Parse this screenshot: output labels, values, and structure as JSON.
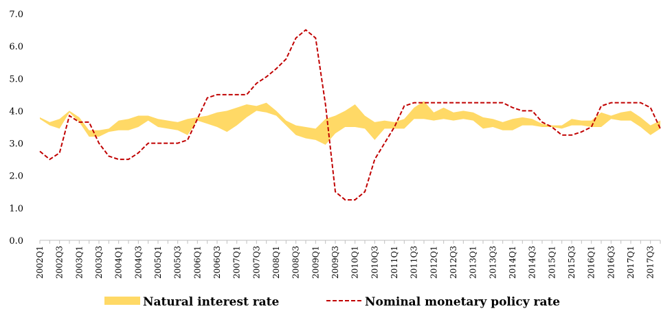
{
  "chart_data": {
    "type": "band-line",
    "categories": [
      "2002Q1",
      null,
      "2002Q3",
      null,
      "2003Q1",
      null,
      "2003Q3",
      null,
      "2004Q1",
      null,
      "2004Q3",
      null,
      "2005Q1",
      null,
      "2005Q3",
      null,
      "2006Q1",
      null,
      "2006Q3",
      null,
      "2007Q1",
      null,
      "2007Q3",
      null,
      "2008Q1",
      null,
      "2008Q3",
      null,
      "2009Q1",
      null,
      "2009Q3",
      null,
      "2010Q1",
      null,
      "2010Q3",
      null,
      "2011Q1",
      null,
      "2011Q3",
      null,
      "2012Q1",
      null,
      "2012Q3",
      null,
      "2013Q1",
      null,
      "2013Q3",
      null,
      "2014Q1",
      null,
      "2014Q3",
      null,
      "2015Q1",
      null,
      "2015Q3",
      null,
      "2016Q1",
      null,
      "2016Q3",
      null,
      "2017Q1",
      null,
      "2017Q3",
      null
    ],
    "series": [
      {
        "name": "Natural interest rate",
        "color": "#ffd966",
        "low": [
          3.75,
          3.55,
          3.45,
          3.95,
          3.65,
          3.2,
          3.2,
          3.35,
          3.4,
          3.4,
          3.5,
          3.7,
          3.5,
          3.45,
          3.4,
          3.25,
          3.7,
          3.6,
          3.5,
          3.35,
          3.55,
          3.8,
          4.0,
          3.95,
          3.85,
          3.55,
          3.25,
          3.15,
          3.1,
          2.95,
          3.3,
          3.5,
          3.5,
          3.45,
          3.1,
          3.45,
          3.45,
          3.45,
          3.75,
          3.75,
          3.7,
          3.75,
          3.7,
          3.75,
          3.7,
          3.45,
          3.5,
          3.4,
          3.4,
          3.55,
          3.55,
          3.5,
          3.5,
          3.45,
          3.55,
          3.55,
          3.5,
          3.5,
          3.75,
          3.7,
          3.7,
          3.5,
          3.25,
          3.45
        ],
        "high": [
          3.8,
          3.65,
          3.75,
          4.0,
          3.8,
          3.4,
          3.4,
          3.45,
          3.7,
          3.75,
          3.85,
          3.85,
          3.75,
          3.7,
          3.65,
          3.75,
          3.8,
          3.85,
          3.95,
          4.0,
          4.1,
          4.2,
          4.15,
          4.25,
          4.0,
          3.7,
          3.55,
          3.5,
          3.45,
          3.75,
          3.85,
          4.0,
          4.2,
          3.85,
          3.65,
          3.7,
          3.65,
          3.75,
          4.1,
          4.3,
          3.95,
          4.1,
          3.95,
          4.0,
          3.95,
          3.8,
          3.75,
          3.65,
          3.75,
          3.8,
          3.75,
          3.6,
          3.55,
          3.55,
          3.75,
          3.7,
          3.7,
          3.95,
          3.85,
          3.95,
          4.0,
          3.8,
          3.55,
          3.7
        ]
      },
      {
        "name": "Nominal monetary policy rate",
        "color": "#c00000",
        "dashed": true,
        "values": [
          2.75,
          2.5,
          2.7,
          3.85,
          3.65,
          3.65,
          3.0,
          2.6,
          2.5,
          2.5,
          2.7,
          3.0,
          3.0,
          3.0,
          3.0,
          3.1,
          3.75,
          4.4,
          4.5,
          4.5,
          4.5,
          4.5,
          4.85,
          5.05,
          5.3,
          5.6,
          6.25,
          6.5,
          6.25,
          4.2,
          1.5,
          1.25,
          1.25,
          1.5,
          2.5,
          3.0,
          3.5,
          4.15,
          4.25,
          4.25,
          4.25,
          4.25,
          4.25,
          4.25,
          4.25,
          4.25,
          4.25,
          4.25,
          4.1,
          4.0,
          4.0,
          3.65,
          3.5,
          3.25,
          3.25,
          3.35,
          3.5,
          4.15,
          4.25,
          4.25,
          4.25,
          4.25,
          4.1,
          3.45
        ]
      }
    ],
    "ylim": [
      0,
      7
    ],
    "yticks": [
      {
        "value": 0,
        "label": "0.0"
      },
      {
        "value": 1,
        "label": "1.0"
      },
      {
        "value": 2,
        "label": "2.0"
      },
      {
        "value": 3,
        "label": "3.0"
      },
      {
        "value": 4,
        "label": "4.0"
      },
      {
        "value": 5,
        "label": "5.0"
      },
      {
        "value": 6,
        "label": "6.0"
      },
      {
        "value": 7,
        "label": "7.0"
      }
    ]
  }
}
